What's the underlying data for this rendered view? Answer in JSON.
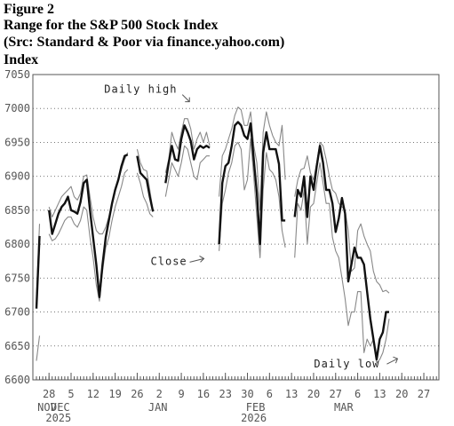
{
  "header": {
    "figure": "Figure 2",
    "title": "Range for the S&P 500 Stock Index",
    "source": " (Src: Standard & Poor via finance.yahoo.com)",
    "ylabel": "Index"
  },
  "chart_data": {
    "type": "line",
    "title": "Range for the S&P 500 Stock Index",
    "ylabel": "Index",
    "ylim": [
      6600,
      7050
    ],
    "yticks": [
      6600,
      6650,
      6700,
      6750,
      6800,
      6850,
      6900,
      6950,
      7000,
      7050
    ],
    "grid": "horizontal dotted",
    "x_start": "2025-11-24",
    "x_end": "2026-03-31",
    "xticks_day": [
      {
        "date": "2025-11-28",
        "label": "28"
      },
      {
        "date": "2025-12-05",
        "label": "5"
      },
      {
        "date": "2025-12-12",
        "label": "12"
      },
      {
        "date": "2025-12-19",
        "label": "19"
      },
      {
        "date": "2025-12-26",
        "label": "26"
      },
      {
        "date": "2026-01-02",
        "label": "2"
      },
      {
        "date": "2026-01-09",
        "label": "9"
      },
      {
        "date": "2026-01-16",
        "label": "16"
      },
      {
        "date": "2026-01-23",
        "label": "23"
      },
      {
        "date": "2026-01-30",
        "label": "30"
      },
      {
        "date": "2026-02-06",
        "label": "6"
      },
      {
        "date": "2026-02-13",
        "label": "13"
      },
      {
        "date": "2026-02-20",
        "label": "20"
      },
      {
        "date": "2026-02-27",
        "label": "27"
      },
      {
        "date": "2026-03-06",
        "label": "6"
      },
      {
        "date": "2026-03-13",
        "label": "13"
      },
      {
        "date": "2026-03-20",
        "label": "20"
      },
      {
        "date": "2026-03-27",
        "label": "27"
      }
    ],
    "xticks_month": [
      {
        "date": "2025-11-24",
        "label": "NOV"
      },
      {
        "date": "2025-12-01",
        "label": "DEC"
      },
      {
        "date": "2026-01-01",
        "label": "JAN"
      },
      {
        "date": "2026-02-01",
        "label": "FEB"
      },
      {
        "date": "2026-03-01",
        "label": "MAR"
      }
    ],
    "xticks_year": [
      {
        "date": "2025-12-01",
        "label": "2025"
      },
      {
        "date": "2026-02-01",
        "label": "2026"
      }
    ],
    "annotations": [
      {
        "text": "Daily high",
        "date": "2026-01-02",
        "value": 7023
      },
      {
        "text": "Close",
        "date": "2025-12-28",
        "value": 6780
      },
      {
        "text": "Daily low",
        "date": "2026-02-19",
        "value": 6622
      }
    ],
    "segments": [
      {
        "dates": [
          "2025-11-24",
          "2025-11-25"
        ],
        "high": [
          6720,
          6830
        ],
        "close": [
          6705,
          6812
        ],
        "low": [
          6628,
          6665
        ]
      },
      {
        "dates": [
          "2025-11-28",
          "2025-11-29",
          "2025-11-30",
          "2025-12-01",
          "2025-12-02",
          "2025-12-03",
          "2025-12-04",
          "2025-12-05",
          "2025-12-06",
          "2025-12-07",
          "2025-12-08",
          "2025-12-09",
          "2025-12-10",
          "2025-12-11",
          "2025-12-12",
          "2025-12-13",
          "2025-12-14",
          "2025-12-15",
          "2025-12-16",
          "2025-12-17",
          "2025-12-18",
          "2025-12-19",
          "2025-12-20",
          "2025-12-21",
          "2025-12-22",
          "2025-12-23"
        ],
        "high": [
          6855,
          6840,
          6850,
          6860,
          6870,
          6875,
          6880,
          6885,
          6870,
          6865,
          6875,
          6900,
          6902,
          6870,
          6840,
          6820,
          6815,
          6815,
          6825,
          6840,
          6860,
          6880,
          6895,
          6910,
          6925,
          6935
        ],
        "close": [
          6850,
          6815,
          6830,
          6845,
          6855,
          6860,
          6870,
          6850,
          6848,
          6845,
          6862,
          6890,
          6895,
          6850,
          6810,
          6770,
          6722,
          6770,
          6810,
          6835,
          6860,
          6880,
          6895,
          6915,
          6930,
          6932
        ],
        "low": [
          6815,
          6805,
          6808,
          6815,
          6825,
          6835,
          6840,
          6840,
          6830,
          6825,
          6835,
          6855,
          6850,
          6810,
          6780,
          6740,
          6716,
          6760,
          6795,
          6810,
          6835,
          6855,
          6870,
          6885,
          6905,
          6910
        ]
      },
      {
        "dates": [
          "2025-12-26",
          "2025-12-27",
          "2025-12-28",
          "2025-12-29",
          "2025-12-30",
          "2025-12-31"
        ],
        "high": [
          6940,
          6920,
          6910,
          6908,
          6880,
          6850
        ],
        "close": [
          6930,
          6905,
          6900,
          6895,
          6870,
          6848
        ],
        "low": [
          6905,
          6890,
          6870,
          6860,
          6845,
          6840
        ]
      },
      {
        "dates": [
          "2026-01-04",
          "2026-01-05",
          "2026-01-06",
          "2026-01-07",
          "2026-01-08",
          "2026-01-09",
          "2026-01-10",
          "2026-01-11",
          "2026-01-12",
          "2026-01-13",
          "2026-01-14",
          "2026-01-15",
          "2026-01-16",
          "2026-01-17",
          "2026-01-18"
        ],
        "high": [
          6905,
          6925,
          6965,
          6950,
          6940,
          6965,
          6985,
          6985,
          6970,
          6940,
          6955,
          6965,
          6950,
          6965,
          6945
        ],
        "close": [
          6890,
          6920,
          6945,
          6925,
          6923,
          6955,
          6975,
          6965,
          6952,
          6925,
          6940,
          6945,
          6942,
          6945,
          6942
        ],
        "low": [
          6870,
          6895,
          6920,
          6910,
          6900,
          6920,
          6945,
          6940,
          6920,
          6900,
          6895,
          6920,
          6925,
          6930,
          6930
        ]
      },
      {
        "dates": [
          "2026-01-21",
          "2026-01-22",
          "2026-01-23",
          "2026-01-24",
          "2026-01-25",
          "2026-01-26",
          "2026-01-27",
          "2026-01-28",
          "2026-01-29",
          "2026-01-30",
          "2026-01-31",
          "2026-02-01",
          "2026-02-02",
          "2026-02-03",
          "2026-02-04",
          "2026-02-05",
          "2026-02-06",
          "2026-02-07",
          "2026-02-08",
          "2026-02-09",
          "2026-02-10",
          "2026-02-11"
        ],
        "high": [
          6870,
          6930,
          6940,
          6955,
          6970,
          6990,
          7002,
          6998,
          6975,
          6975,
          6995,
          6945,
          6920,
          6850,
          6965,
          6995,
          6975,
          6960,
          6950,
          6945,
          6975,
          6895
        ],
        "close": [
          6800,
          6890,
          6915,
          6920,
          6945,
          6975,
          6980,
          6975,
          6960,
          6955,
          6978,
          6925,
          6875,
          6800,
          6935,
          6965,
          6940,
          6940,
          6940,
          6918,
          6835,
          6835
        ],
        "low": [
          6790,
          6860,
          6880,
          6905,
          6920,
          6945,
          6950,
          6940,
          6880,
          6895,
          6955,
          6900,
          6840,
          6780,
          6880,
          6935,
          6910,
          6905,
          6895,
          6870,
          6820,
          6795
        ]
      },
      {
        "dates": [
          "2026-02-14",
          "2026-02-15",
          "2026-02-16",
          "2026-02-17",
          "2026-02-18",
          "2026-02-19",
          "2026-02-20",
          "2026-02-21",
          "2026-02-22",
          "2026-02-23",
          "2026-02-24",
          "2026-02-25",
          "2026-02-26",
          "2026-02-27",
          "2026-02-28",
          "2026-03-01",
          "2026-03-02",
          "2026-03-03",
          "2026-03-04",
          "2026-03-05",
          "2026-03-06",
          "2026-03-07",
          "2026-03-08",
          "2026-03-09",
          "2026-03-10",
          "2026-03-11",
          "2026-03-12",
          "2026-03-13",
          "2026-03-14",
          "2026-03-15",
          "2026-03-16"
        ],
        "high": [
          6870,
          6895,
          6910,
          6912,
          6930,
          6905,
          6895,
          6920,
          6950,
          6945,
          6925,
          6900,
          6880,
          6875,
          6860,
          6855,
          6850,
          6820,
          6760,
          6765,
          6820,
          6830,
          6812,
          6800,
          6790,
          6760,
          6745,
          6740,
          6730,
          6732,
          6728
        ],
        "close": [
          6840,
          6880,
          6870,
          6900,
          6840,
          6900,
          6880,
          6915,
          6945,
          6920,
          6880,
          6880,
          6860,
          6818,
          6838,
          6868,
          6845,
          6745,
          6770,
          6795,
          6780,
          6780,
          6770,
          6730,
          6690,
          6660,
          6630,
          6660,
          6670,
          6700,
          6700
        ],
        "low": [
          6780,
          6860,
          6850,
          6880,
          6800,
          6855,
          6860,
          6890,
          6920,
          6890,
          6860,
          6860,
          6810,
          6790,
          6780,
          6750,
          6720,
          6680,
          6700,
          6700,
          6730,
          6730,
          6640,
          6660,
          6650,
          6660,
          6625,
          6630,
          6640,
          6660,
          6690
        ]
      }
    ]
  }
}
